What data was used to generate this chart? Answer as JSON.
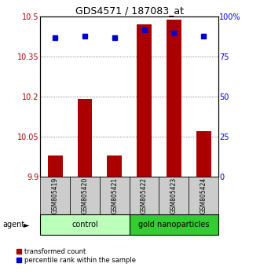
{
  "title": "GDS4571 / 187083_at",
  "samples": [
    "GSM805419",
    "GSM805420",
    "GSM805421",
    "GSM805422",
    "GSM805423",
    "GSM805424"
  ],
  "red_values": [
    9.98,
    10.19,
    9.98,
    10.47,
    10.49,
    10.07
  ],
  "blue_values": [
    87,
    88,
    87,
    92,
    90,
    88
  ],
  "ylim_left": [
    9.9,
    10.5
  ],
  "ylim_right": [
    0,
    100
  ],
  "yticks_left": [
    9.9,
    10.05,
    10.2,
    10.35,
    10.5
  ],
  "yticks_right": [
    0,
    25,
    50,
    75,
    100
  ],
  "ytick_labels_left": [
    "9.9",
    "10.05",
    "10.2",
    "10.35",
    "10.5"
  ],
  "ytick_labels_right": [
    "0",
    "25",
    "50",
    "75",
    "100%"
  ],
  "red_color": "#aa0000",
  "blue_color": "#0000cc",
  "bar_bottom": 9.9,
  "groups": [
    {
      "label": "control",
      "indices": [
        0,
        1,
        2
      ],
      "color": "#bbffbb"
    },
    {
      "label": "gold nanoparticles",
      "indices": [
        3,
        4,
        5
      ],
      "color": "#33cc33"
    }
  ],
  "agent_label": "agent",
  "legend_red": "transformed count",
  "legend_blue": "percentile rank within the sample",
  "grid_color": "#555555",
  "sample_box_color": "#cccccc",
  "bar_width": 0.5,
  "blue_marker_size": 4
}
